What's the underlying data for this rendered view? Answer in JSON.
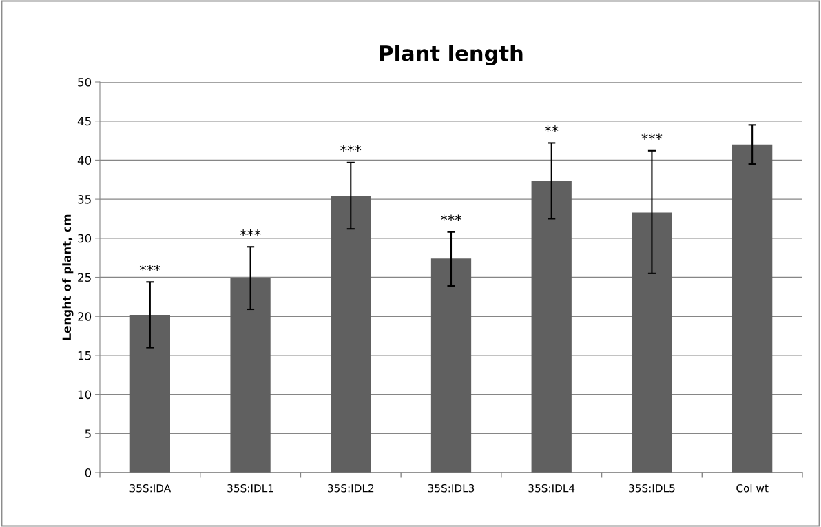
{
  "chart_data": {
    "type": "bar",
    "title": "Plant length",
    "ylabel": "Lenght of plant, cm",
    "categories": [
      "35S:IDA",
      "35S:IDL1",
      "35S:IDL2",
      "35S:IDL3",
      "35S:IDL4",
      "35S:IDL5",
      "Col wt"
    ],
    "values": [
      20.2,
      24.9,
      35.4,
      27.4,
      37.3,
      33.3,
      42.0
    ],
    "errors": [
      [
        16.0,
        24.4
      ],
      [
        20.9,
        28.9
      ],
      [
        31.2,
        39.7
      ],
      [
        23.9,
        30.8
      ],
      [
        32.5,
        42.2
      ],
      [
        25.5,
        41.2
      ],
      [
        39.5,
        44.5
      ]
    ],
    "color": "#606060",
    "ylim": [
      0,
      50
    ],
    "yticks": [
      0,
      5,
      10,
      15,
      20,
      25,
      30,
      35,
      40,
      45,
      50
    ],
    "grid": "y",
    "annotations": [
      {
        "text": "***",
        "x": "35S:IDA",
        "y": 24.4
      },
      {
        "text": "***",
        "x": "35S:IDL1",
        "y": 28.9
      },
      {
        "text": "***",
        "x": "35S:IDL2",
        "y": 39.7
      },
      {
        "text": "***",
        "x": "35S:IDL3",
        "y": 30.8
      },
      {
        "text": "**",
        "x": "35S:IDL4",
        "y": 42.2
      },
      {
        "text": "***",
        "x": "35S:IDL5",
        "y": 41.2
      }
    ]
  }
}
